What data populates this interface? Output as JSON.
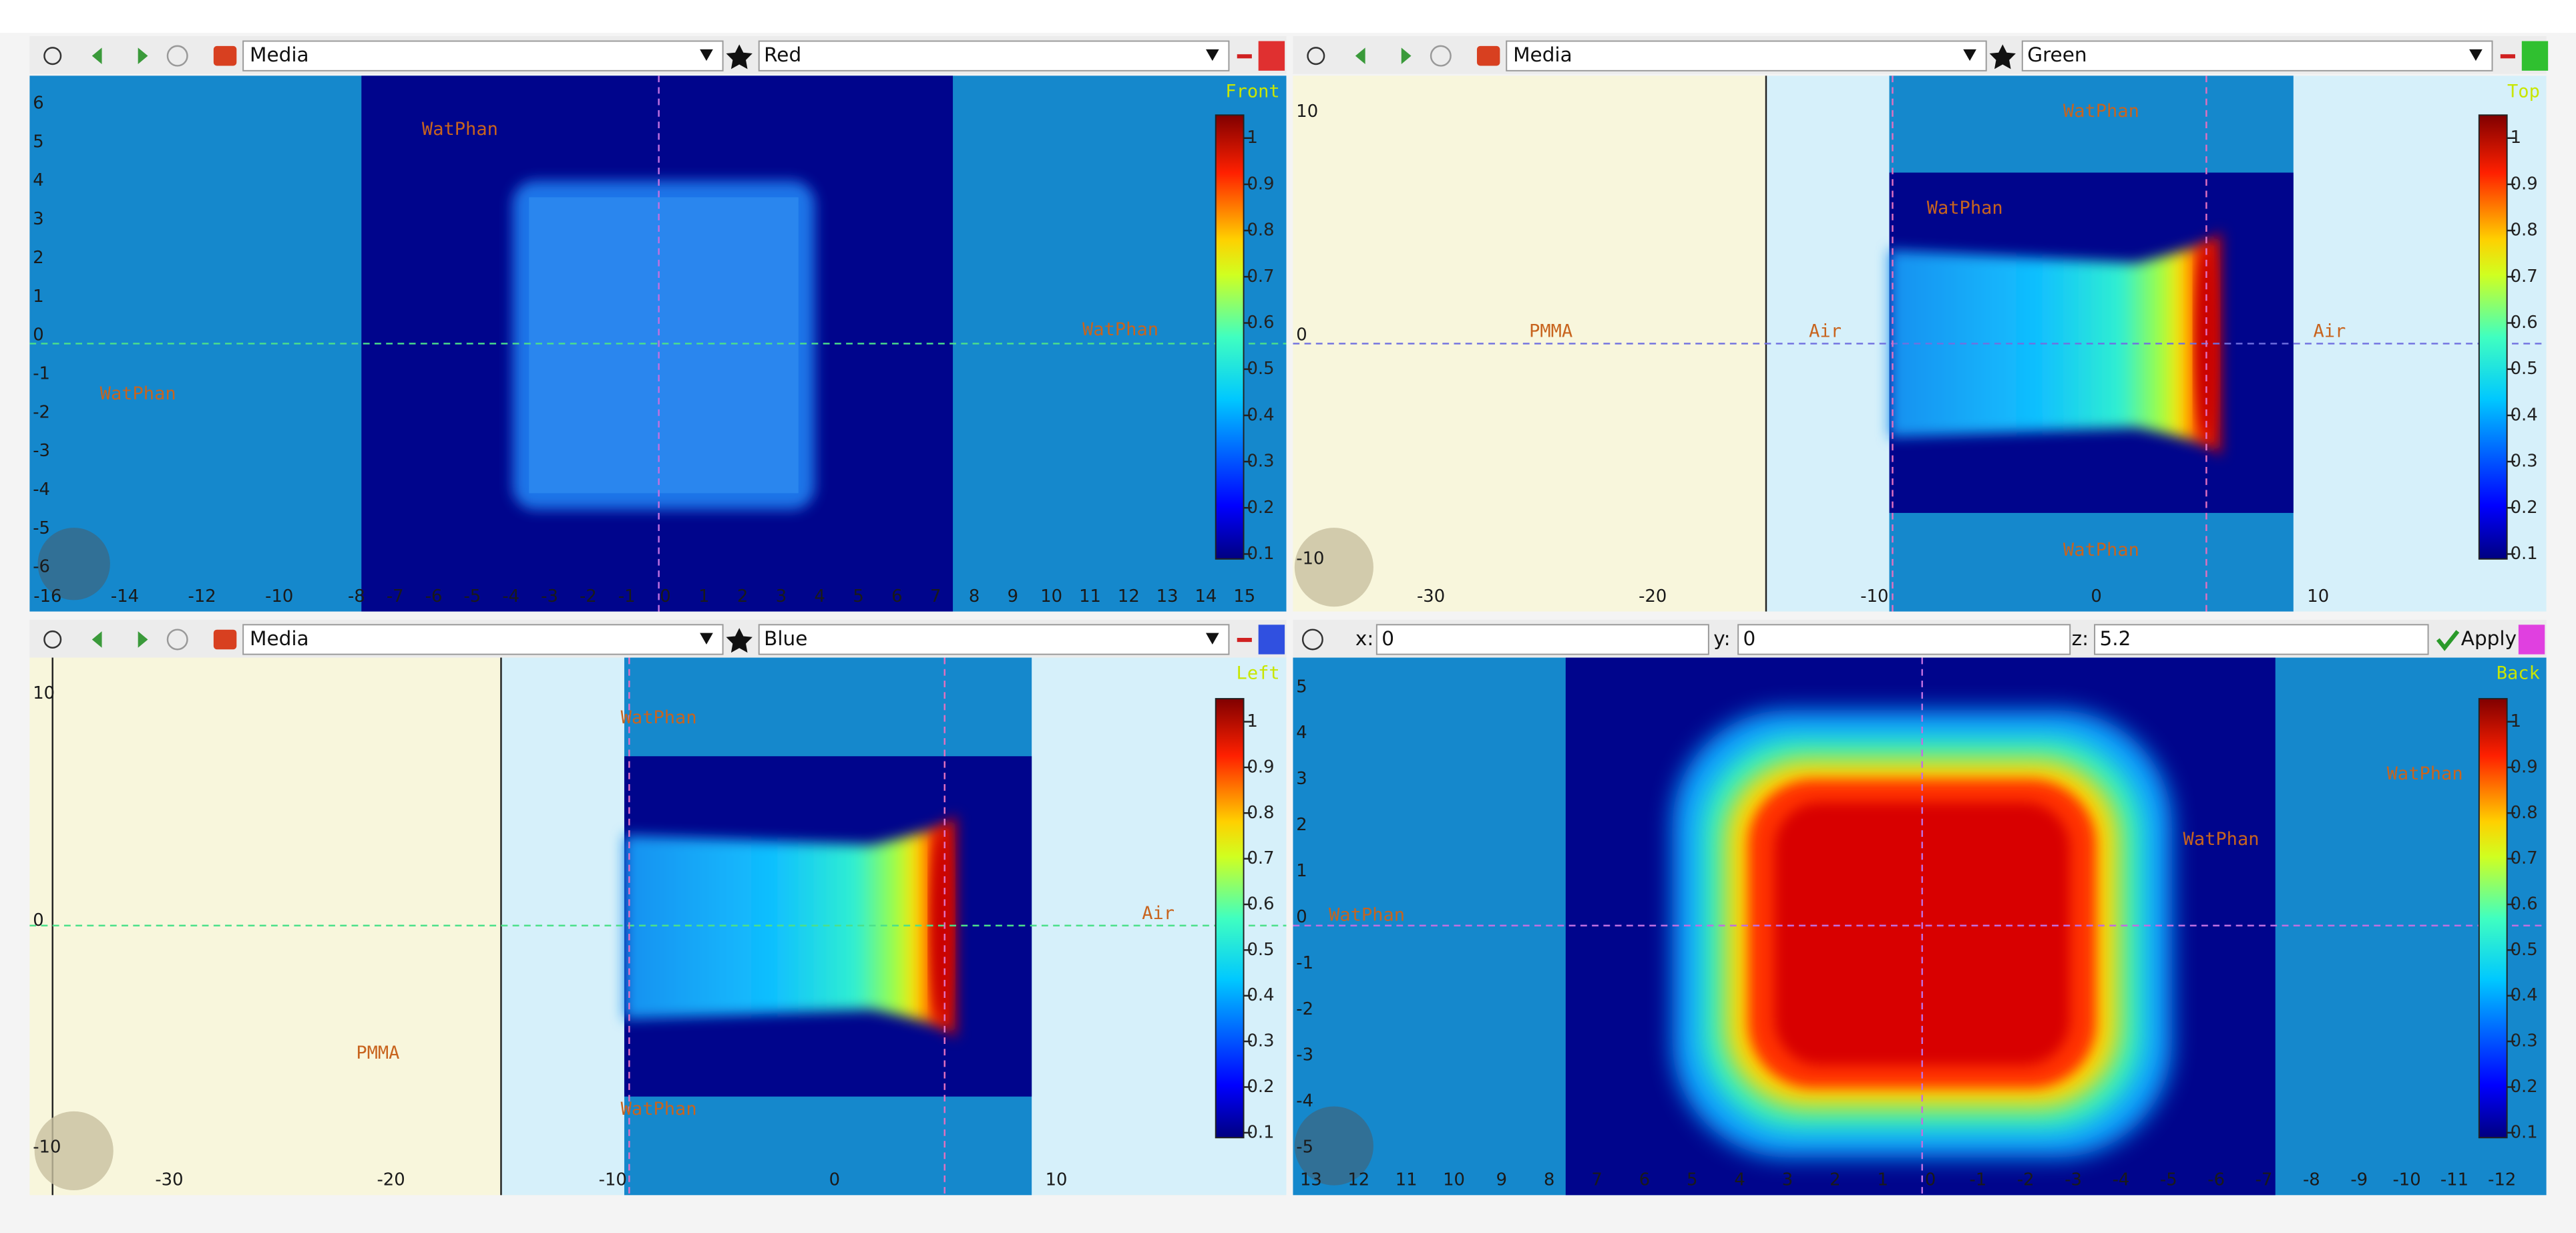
{
  "panels": [
    {
      "toolbar": {
        "layer": "Media",
        "palette": "Red"
      },
      "view": "Front",
      "x_ticks": [
        "-16",
        "-14",
        "-12",
        "-10",
        "-8",
        "-7",
        "-6",
        "-5",
        "-4",
        "-3",
        "-2",
        "-1",
        "0",
        "1",
        "2",
        "3",
        "4",
        "5",
        "6",
        "7",
        "8",
        "9",
        "10",
        "11",
        "12",
        "13",
        "14",
        "15"
      ],
      "y_ticks": [
        "6",
        "5",
        "4",
        "3",
        "2",
        "1",
        "0",
        "-1",
        "-2",
        "-3",
        "-4",
        "-5",
        "-6"
      ],
      "regions": [
        "WatPhan",
        "WatPhan",
        "WatPhan"
      ],
      "colorbar": [
        "1",
        "0.9",
        "0.8",
        "0.7",
        "0.6",
        "0.5",
        "0.4",
        "0.3",
        "0.2",
        "0.1"
      ]
    },
    {
      "toolbar": {
        "layer": "Media",
        "palette": "Green"
      },
      "view": "Top",
      "x_ticks": [
        "-30",
        "-20",
        "-10",
        "0",
        "10"
      ],
      "y_ticks": [
        "10",
        "0",
        "-10"
      ],
      "regions": [
        "WatPhan",
        "PMMA",
        "Air",
        "WatPhan",
        "Air",
        "WatPhan"
      ],
      "colorbar": [
        "1",
        "0.9",
        "0.8",
        "0.7",
        "0.6",
        "0.5",
        "0.4",
        "0.3",
        "0.2",
        "0.1"
      ]
    },
    {
      "toolbar": {
        "layer": "Media",
        "palette": "Blue"
      },
      "view": "Left",
      "x_ticks": [
        "-30",
        "-20",
        "-10",
        "0",
        "10"
      ],
      "y_ticks": [
        "10",
        "0",
        "-10"
      ],
      "regions": [
        "WatPhan",
        "Air",
        "PMMA",
        "WatPhan"
      ],
      "colorbar": [
        "1",
        "0.9",
        "0.8",
        "0.7",
        "0.6",
        "0.5",
        "0.4",
        "0.3",
        "0.2",
        "0.1"
      ]
    },
    {
      "coords": {
        "x_label": "x:",
        "x": "0",
        "y_label": "y:",
        "y": "0",
        "z_label": "z:",
        "z": "5.2",
        "apply": "Apply"
      },
      "view": "Back",
      "x_ticks": [
        "13",
        "12",
        "11",
        "10",
        "9",
        "8",
        "7",
        "6",
        "5",
        "4",
        "3",
        "2",
        "1",
        "0",
        "-1",
        "-2",
        "-3",
        "-4",
        "-5",
        "-6",
        "-7",
        "-8",
        "-9",
        "-10",
        "-11",
        "-12"
      ],
      "y_ticks": [
        "5",
        "4",
        "3",
        "2",
        "1",
        "0",
        "-1",
        "-2",
        "-3",
        "-4",
        "-5"
      ],
      "regions": [
        "WatPhan",
        "WatPhan",
        "WatPhan"
      ],
      "colorbar": [
        "1",
        "0.9",
        "0.8",
        "0.7",
        "0.6",
        "0.5",
        "0.4",
        "0.3",
        "0.2",
        "0.1"
      ]
    }
  ]
}
